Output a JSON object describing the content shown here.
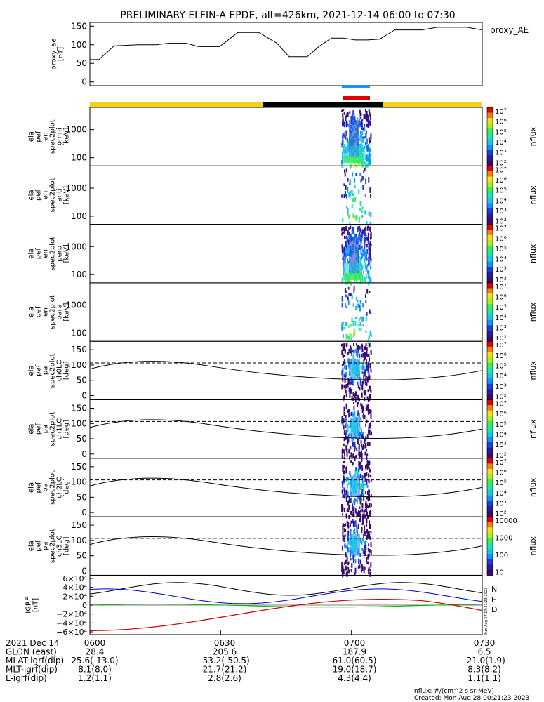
{
  "chart_data": {
    "type": "line",
    "title": "PRELIMINARY ELFIN-A EPDE, alt=426km, 2021-12-14 06:00 to 07:30",
    "time_axis": {
      "start": "06:00",
      "end": "07:30",
      "ticks": [
        "0600",
        "0630",
        "0700",
        "0730"
      ]
    },
    "colorbar_ticks_exp": [
      "10⁷",
      "10⁶",
      "10⁵",
      "10⁴",
      "10³",
      "10²"
    ],
    "colorbar_ticks_lin": [
      "10000",
      "1000",
      "100",
      "10"
    ],
    "colorbar_label": "nflux",
    "panels": [
      {
        "id": "ae",
        "ylabel": [
          "proxy_ae",
          "[nT]"
        ],
        "series_name": "proxy_AE",
        "ylim": [
          -10,
          160
        ],
        "yticks": [
          "150",
          "100",
          "50",
          "0"
        ],
        "yticks_values": [
          150,
          100,
          50,
          0
        ],
        "points": [
          [
            0,
            60
          ],
          [
            3,
            60
          ],
          [
            8,
            97
          ],
          [
            16,
            100
          ],
          [
            22,
            100
          ],
          [
            26,
            104
          ],
          [
            32,
            104
          ],
          [
            36,
            95
          ],
          [
            43,
            95
          ],
          [
            49,
            133
          ],
          [
            56,
            133
          ],
          [
            62,
            104
          ],
          [
            66,
            68
          ],
          [
            72,
            68
          ],
          [
            76,
            96
          ],
          [
            80,
            118
          ],
          [
            84,
            118
          ],
          [
            88,
            113
          ],
          [
            92,
            113
          ],
          [
            96,
            115
          ],
          [
            101,
            140
          ],
          [
            110,
            140
          ],
          [
            115,
            147
          ],
          [
            125,
            147
          ],
          [
            130,
            140
          ]
        ],
        "x_span_minutes": 90
      },
      {
        "id": "omni",
        "ylabel": [
          "ela",
          "pef",
          "en",
          "spec2plot",
          "omni",
          "[keV]"
        ],
        "yticks": [
          "1000",
          "100"
        ]
      },
      {
        "id": "anti",
        "ylabel": [
          "ela",
          "pef",
          "en",
          "spec2plot",
          "anti",
          "[keV]"
        ],
        "yticks": [
          "1000",
          "100"
        ]
      },
      {
        "id": "perp",
        "ylabel": [
          "ela",
          "pef",
          "en",
          "spec2plot",
          "perp",
          "[keV]"
        ],
        "yticks": [
          "1000",
          "100"
        ]
      },
      {
        "id": "para",
        "ylabel": [
          "ela",
          "pef",
          "en",
          "spec2plot",
          "para",
          "[keV]"
        ],
        "yticks": [
          "1000",
          "100"
        ]
      },
      {
        "id": "ch0",
        "ylabel": [
          "ela",
          "pef",
          "pa",
          "spec2plot",
          "ch0LC",
          "[deg]"
        ],
        "yticks": [
          "150",
          "100",
          "50",
          "0"
        ]
      },
      {
        "id": "ch1",
        "ylabel": [
          "ela",
          "pef",
          "pa",
          "spec2plot",
          "ch1LC",
          "[deg]"
        ],
        "yticks": [
          "150",
          "100",
          "50",
          "0"
        ]
      },
      {
        "id": "ch2",
        "ylabel": [
          "ela",
          "pef",
          "pa",
          "spec2plot",
          "ch2LC",
          "[deg]"
        ],
        "yticks": [
          "150",
          "100",
          "50",
          "0"
        ]
      },
      {
        "id": "ch3",
        "ylabel": [
          "ela",
          "pef",
          "pa",
          "spec2plot",
          "ch3LC",
          "[deg]"
        ],
        "yticks": [
          "150",
          "100",
          "50",
          "0"
        ]
      },
      {
        "id": "igrf",
        "ylabel": [
          "IGRF",
          "[nT]"
        ],
        "yticks": [
          "6×10⁴",
          "4×10⁴",
          "2×10⁴",
          "0",
          "−2×10⁴",
          "−4×10⁴",
          "−6×10⁴"
        ],
        "ylim": [
          -60000,
          60000
        ],
        "legend": [
          "N",
          "E",
          "D"
        ],
        "legend_colors": [
          "#0000cc",
          "#00bb00",
          "#cc0000"
        ]
      }
    ],
    "footer": {
      "rows": [
        [
          "2021 Dec 14",
          "0600",
          "0630",
          "0700",
          "0730"
        ],
        [
          "GLON (east)",
          "28.4",
          "205.6",
          "187.9",
          "6.5"
        ],
        [
          "MLAT-igrf(dip)",
          "25.6(-13.0)",
          "-53.2(-50.5)",
          "61.0(60.5)",
          "-21.0(1.9)"
        ],
        [
          "MLT-igrf(dip)",
          "8.1(8.0)",
          "21.7(21.2)",
          "19.0(18.7)",
          "8.3(8.2)"
        ],
        [
          "L-igrf(dip)",
          "1.2(1.1)",
          "2.8(2.6)",
          "4.3(4.4)",
          "1.1(1.1)"
        ]
      ],
      "note1": "nflux: #/(cm^2 s sr MeV)",
      "note2": "Created: Mon Aug 28 00:21:23 2023",
      "side_stamp": "Sun Aug 27 17:21:23 2023"
    },
    "colors": {
      "bar_yellow": "#f5d311",
      "bar_black": "#000000",
      "marker_blue": "#1e90ff",
      "marker_red": "#e00000"
    }
  }
}
